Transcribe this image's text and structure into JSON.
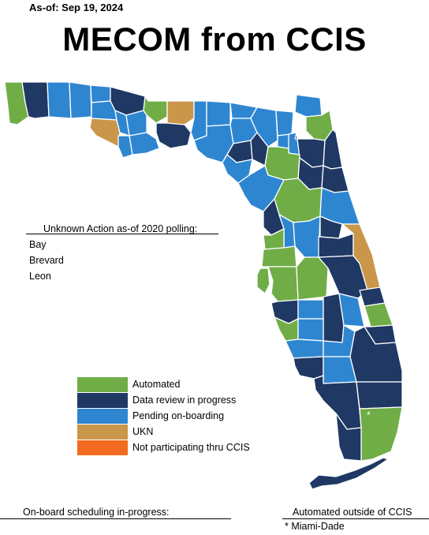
{
  "as_of": "As-of: Sep 19, 2024",
  "title": "MECOM from CCIS",
  "colors": {
    "automated": "#70AD47",
    "data_review": "#1F3864",
    "pending": "#2E86D1",
    "ukn": "#C9964A",
    "not_participating": "#F26B21"
  },
  "unknown_action": {
    "header": "Unknown Action as-of 2020 polling:",
    "items": [
      "Bay",
      "Brevard",
      "Leon"
    ]
  },
  "legend": [
    {
      "label": "Automated",
      "status": "automated"
    },
    {
      "label": "Data review in progress",
      "status": "data_review"
    },
    {
      "label": "Pending on-boarding",
      "status": "pending"
    },
    {
      "label": "UKN",
      "status": "ukn"
    },
    {
      "label": "Not participating thru CCIS",
      "status": "not_participating"
    }
  ],
  "onboard_label": "On-board scheduling in-progress:",
  "automated_outside": {
    "header": "Automated outside of CCIS",
    "items": [
      "* Miami-Dade"
    ]
  },
  "map_marker": "*",
  "counties": [
    {
      "name": "Escambia",
      "status": "automated"
    },
    {
      "name": "Santa Rosa",
      "status": "data_review"
    },
    {
      "name": "Okaloosa",
      "status": "pending"
    },
    {
      "name": "Walton",
      "status": "pending"
    },
    {
      "name": "Holmes",
      "status": "pending"
    },
    {
      "name": "Washington",
      "status": "pending"
    },
    {
      "name": "Jackson",
      "status": "data_review"
    },
    {
      "name": "Bay",
      "status": "ukn"
    },
    {
      "name": "Calhoun",
      "status": "pending"
    },
    {
      "name": "Gulf",
      "status": "pending"
    },
    {
      "name": "Gadsden",
      "status": "automated"
    },
    {
      "name": "Liberty",
      "status": "pending"
    },
    {
      "name": "Franklin",
      "status": "pending"
    },
    {
      "name": "Leon",
      "status": "ukn"
    },
    {
      "name": "Wakulla",
      "status": "data_review"
    },
    {
      "name": "Jefferson",
      "status": "pending"
    },
    {
      "name": "Madison",
      "status": "pending"
    },
    {
      "name": "Taylor",
      "status": "pending"
    },
    {
      "name": "Hamilton",
      "status": "pending"
    },
    {
      "name": "Suwannee",
      "status": "pending"
    },
    {
      "name": "Lafayette",
      "status": "data_review"
    },
    {
      "name": "Dixie",
      "status": "pending"
    },
    {
      "name": "Columbia",
      "status": "pending"
    },
    {
      "name": "Gilchrist",
      "status": "data_review"
    },
    {
      "name": "Baker",
      "status": "pending"
    },
    {
      "name": "Union",
      "status": "pending"
    },
    {
      "name": "Bradford",
      "status": "pending"
    },
    {
      "name": "Nassau",
      "status": "pending"
    },
    {
      "name": "Duval",
      "status": "automated"
    },
    {
      "name": "Clay",
      "status": "data_review"
    },
    {
      "name": "St. Johns",
      "status": "data_review"
    },
    {
      "name": "Putnam",
      "status": "data_review"
    },
    {
      "name": "Flagler",
      "status": "data_review"
    },
    {
      "name": "Alachua",
      "status": "automated"
    },
    {
      "name": "Levy",
      "status": "pending"
    },
    {
      "name": "Marion",
      "status": "automated"
    },
    {
      "name": "Volusia",
      "status": "pending"
    },
    {
      "name": "Citrus",
      "status": "data_review"
    },
    {
      "name": "Sumter",
      "status": "pending"
    },
    {
      "name": "Lake",
      "status": "pending"
    },
    {
      "name": "Hernando",
      "status": "automated"
    },
    {
      "name": "Seminole",
      "status": "data_review"
    },
    {
      "name": "Pasco",
      "status": "automated"
    },
    {
      "name": "Orange",
      "status": "data_review"
    },
    {
      "name": "Brevard",
      "status": "ukn"
    },
    {
      "name": "Pinellas",
      "status": "automated"
    },
    {
      "name": "Hillsborough",
      "status": "automated"
    },
    {
      "name": "Polk",
      "status": "automated"
    },
    {
      "name": "Osceola",
      "status": "data_review"
    },
    {
      "name": "Manatee",
      "status": "data_review"
    },
    {
      "name": "Hardee",
      "status": "pending"
    },
    {
      "name": "Highlands",
      "status": "data_review"
    },
    {
      "name": "Okeechobee",
      "status": "pending"
    },
    {
      "name": "Indian River",
      "status": "data_review"
    },
    {
      "name": "St. Lucie",
      "status": "automated"
    },
    {
      "name": "Sarasota",
      "status": "automated"
    },
    {
      "name": "DeSoto",
      "status": "pending"
    },
    {
      "name": "Martin",
      "status": "data_review"
    },
    {
      "name": "Charlotte",
      "status": "pending"
    },
    {
      "name": "Glades",
      "status": "pending"
    },
    {
      "name": "Lee",
      "status": "data_review"
    },
    {
      "name": "Hendry",
      "status": "pending"
    },
    {
      "name": "Palm Beach",
      "status": "data_review"
    },
    {
      "name": "Collier",
      "status": "data_review"
    },
    {
      "name": "Broward",
      "status": "data_review"
    },
    {
      "name": "Miami-Dade",
      "status": "automated"
    },
    {
      "name": "Monroe",
      "status": "data_review"
    }
  ]
}
